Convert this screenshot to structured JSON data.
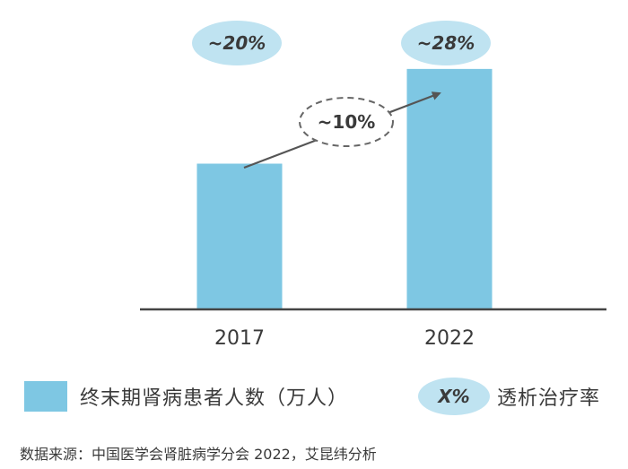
{
  "chart_data": {
    "type": "bar",
    "categories": [
      "2017",
      "2022"
    ],
    "series": [
      {
        "name": "终末期肾病患者人数（万人）",
        "values": [
          100,
          165
        ]
      }
    ],
    "ylim": [
      0,
      200
    ],
    "grid": false,
    "colors": {
      "bar": "#7ec7e3",
      "ellipse": "#bfe3f1",
      "axis": "#444444"
    },
    "dialysis_rates": [
      "~20%",
      "~28%"
    ],
    "growth_label": "~10%"
  },
  "legend": {
    "bar_label": "终末期肾病患者人数（万人）",
    "ellipse_sample": "X%",
    "ellipse_label": "透析治疗率"
  },
  "source": "数据来源：中国医学会肾脏病学分会 2022，艾昆纬分析"
}
